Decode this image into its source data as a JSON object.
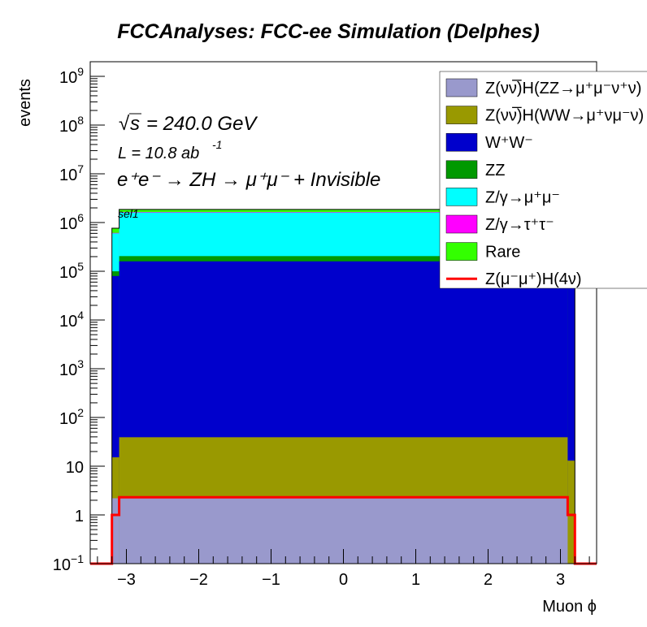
{
  "chart_data": {
    "type": "bar",
    "title": "FCCAnalyses: FCC-ee Simulation (Delphes)",
    "xlabel": "Muon ϕ",
    "ylabel": "events",
    "xlim": [
      -3.5,
      3.5
    ],
    "ylim": [
      0.1,
      2000000000
    ],
    "yscale": "log",
    "stacked": true,
    "grid": false,
    "legend_position": "top-right",
    "annotations": {
      "energy": "= 240.0 GeV",
      "lumi": "L = 10.8 ab",
      "lumi_exp": "-1",
      "process": "e⁺e⁻ → ZH → μ⁺μ⁻ + Invisible",
      "selection": "sel1"
    },
    "x_ticks": [
      "−3",
      "−2",
      "−1",
      "0",
      "1",
      "2",
      "3"
    ],
    "y_ticks": [
      {
        "base": "10",
        "exp": "−1",
        "v": 0.1
      },
      {
        "base": "1",
        "exp": "",
        "v": 1
      },
      {
        "base": "10",
        "exp": "",
        "v": 10
      },
      {
        "base": "10",
        "exp": "2",
        "v": 100
      },
      {
        "base": "10",
        "exp": "3",
        "v": 1000
      },
      {
        "base": "10",
        "exp": "4",
        "v": 10000
      },
      {
        "base": "10",
        "exp": "5",
        "v": 100000
      },
      {
        "base": "10",
        "exp": "6",
        "v": 1000000
      },
      {
        "base": "10",
        "exp": "7",
        "v": 10000000
      },
      {
        "base": "10",
        "exp": "8",
        "v": 100000000
      },
      {
        "base": "10",
        "exp": "9",
        "v": 1000000000
      }
    ],
    "bin_edges": [
      -3.2,
      -3.1,
      3.1,
      3.2
    ],
    "series": [
      {
        "name": "Z(νν̅)H(ZZ→μ⁺μ⁻ν⁺ν)",
        "color": "#9999cc",
        "values": [
          2.2,
          2.3,
          0.0
        ]
      },
      {
        "name": "Z(νν̅)H(WW→μ⁺νμ⁻ν)",
        "color": "#999900",
        "values": [
          13,
          37,
          13
        ]
      },
      {
        "name": "W⁺W⁻",
        "color": "#0000cc",
        "values": [
          80000,
          160000,
          80000
        ]
      },
      {
        "name": "ZZ",
        "color": "#009900",
        "values": [
          20000,
          45000,
          20000
        ]
      },
      {
        "name": "Z/γ→μ⁺μ⁻",
        "color": "#00ffff",
        "values": [
          500000,
          1400000,
          500000
        ]
      },
      {
        "name": "Z/γ→τ⁺τ⁻",
        "color": "#ff00ff",
        "values": [
          14000,
          38000,
          14000
        ]
      },
      {
        "name": "Rare",
        "color": "#33ff00",
        "values": [
          150000,
          220000,
          150000
        ]
      },
      {
        "name": "Z(μ⁻μ⁺)H(4ν)",
        "color": "#ff0000",
        "values": [
          1.0,
          2.3,
          1.0
        ],
        "style": "line"
      }
    ]
  }
}
